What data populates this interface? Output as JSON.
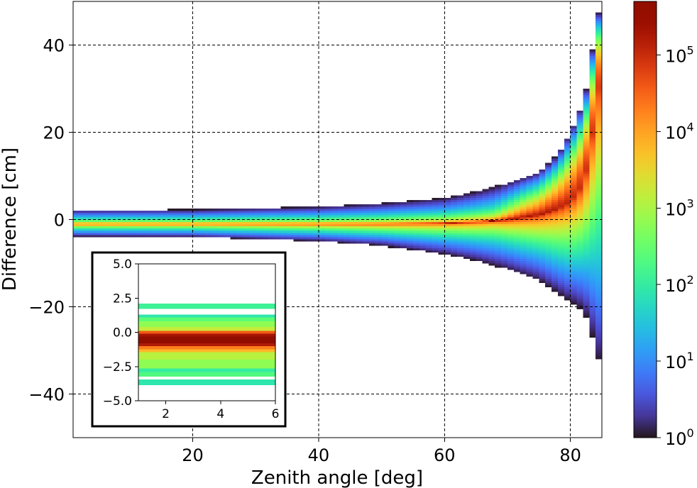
{
  "chart_data": {
    "type": "heatmap",
    "title": "",
    "xlabel": "Zenith angle [deg]",
    "ylabel": "Difference [cm]",
    "xlim": [
      1,
      85
    ],
    "ylim": [
      -50,
      50
    ],
    "xticks": [
      20,
      40,
      60,
      80
    ],
    "yticks": [
      -40,
      -20,
      0,
      20,
      40
    ],
    "xtick_labels": [
      "20",
      "40",
      "60",
      "80"
    ],
    "ytick_labels": [
      "−40",
      "−20",
      "0",
      "20",
      "40"
    ],
    "grid": true,
    "grid_style": "dashed",
    "colormap": "turbo",
    "color_scale": "log",
    "colorbar": {
      "range": [
        1,
        500000
      ],
      "ticks": [
        0,
        1,
        2,
        3,
        4,
        5
      ],
      "tick_labels": [
        {
          "base": "10",
          "exp": "0"
        },
        {
          "base": "10",
          "exp": "1"
        },
        {
          "base": "10",
          "exp": "2"
        },
        {
          "base": "10",
          "exp": "3"
        },
        {
          "base": "10",
          "exp": "4"
        },
        {
          "base": "10",
          "exp": "5"
        }
      ]
    },
    "envelope": {
      "zenith": [
        1,
        20,
        40,
        50,
        60,
        65,
        70,
        75,
        78,
        80,
        82,
        83,
        84,
        85
      ],
      "upper_extent": [
        2.2,
        2.3,
        3,
        3.8,
        5,
        6.5,
        8.5,
        11,
        15,
        20,
        27,
        33,
        45,
        50
      ],
      "lower_extent": [
        -3.9,
        -4,
        -5,
        -6,
        -8,
        -9.5,
        -11.5,
        -14,
        -17,
        -19,
        -21,
        -24,
        -30,
        -35
      ],
      "peak_difference": [
        -1,
        -1,
        -1,
        -1,
        -0.8,
        -0.5,
        0,
        1,
        2.5,
        4,
        8,
        14,
        25,
        35
      ]
    },
    "inset": {
      "xlim": [
        1,
        6
      ],
      "ylim": [
        -5,
        5
      ],
      "xticks": [
        2,
        4,
        6
      ],
      "yticks": [
        -5,
        -2.5,
        0,
        2.5,
        5
      ],
      "xtick_labels": [
        "2",
        "4",
        "6"
      ],
      "ytick_labels": [
        "−5.0",
        "−2.5",
        "0.0",
        "2.5",
        "5.0"
      ],
      "profile": [
        {
          "y0": 1.7,
          "y1": 2.1,
          "log10_count": 2.1
        },
        {
          "y0": 1.1,
          "y1": 1.3,
          "log10_count": 1.9
        },
        {
          "y0": 0.8,
          "y1": 1.1,
          "log10_count": 2.4
        },
        {
          "y0": 0.4,
          "y1": 0.8,
          "log10_count": 2.8
        },
        {
          "y0": 0.1,
          "y1": 0.4,
          "log10_count": 3.2
        },
        {
          "y0": -0.1,
          "y1": 0.1,
          "log10_count": 4.6
        },
        {
          "y0": -0.3,
          "y1": -0.1,
          "log10_count": 5.3
        },
        {
          "y0": -0.8,
          "y1": -0.3,
          "log10_count": 5.7
        },
        {
          "y0": -1.0,
          "y1": -0.8,
          "log10_count": 5.2
        },
        {
          "y0": -1.25,
          "y1": -1.0,
          "log10_count": 4.3
        },
        {
          "y0": -1.45,
          "y1": -1.25,
          "log10_count": 3.8
        },
        {
          "y0": -2.0,
          "y1": -1.45,
          "log10_count": 3.1
        },
        {
          "y0": -2.65,
          "y1": -2.0,
          "log10_count": 2.8
        },
        {
          "y0": -2.9,
          "y1": -2.65,
          "log10_count": 2.0
        },
        {
          "y0": -3.25,
          "y1": -2.9,
          "log10_count": 2.3
        },
        {
          "y0": -3.85,
          "y1": -3.45,
          "log10_count": 1.9
        }
      ]
    }
  }
}
